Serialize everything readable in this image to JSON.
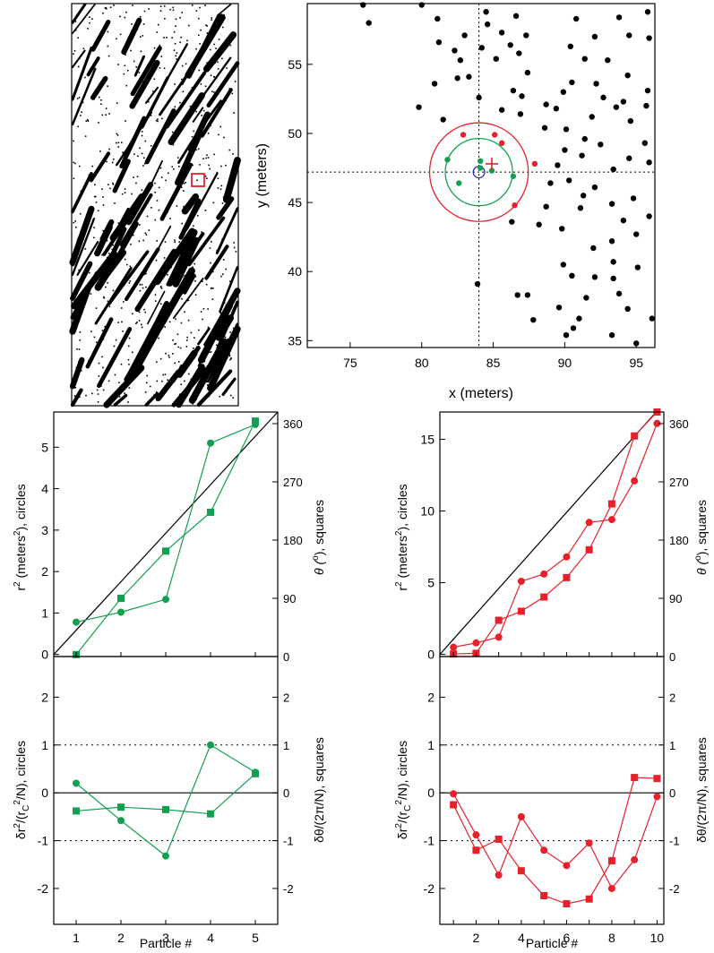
{
  "colors": {
    "green": "#12a050",
    "red": "#e8202a",
    "blue": "#2a2aa8",
    "black": "#000000"
  },
  "chart_data": [
    {
      "id": "map",
      "type": "image",
      "description": "binary particle field (black streaks on white)",
      "marker": "red square"
    },
    {
      "id": "zoom",
      "type": "scatter",
      "xlabel": "x (meters)",
      "ylabel": "y (meters)",
      "xlim": [
        72,
        96.3
      ],
      "ylim": [
        34.5,
        59.4
      ],
      "xticks": [
        75,
        80,
        85,
        90,
        95
      ],
      "yticks": [
        35,
        40,
        45,
        50,
        55
      ],
      "center": [
        84.0,
        47.2
      ],
      "circles": [
        {
          "color": "red",
          "r": 3.45
        },
        {
          "color": "green",
          "r": 2.35
        },
        {
          "color": "blue",
          "r": 0.4
        }
      ],
      "cross": [
        84.9,
        47.8
      ],
      "black_points": [
        [
          75.9,
          59.3
        ],
        [
          76.3,
          58.0
        ],
        [
          80.0,
          59.3
        ],
        [
          81.1,
          58.3
        ],
        [
          81.2,
          56.6
        ],
        [
          82.3,
          56.0
        ],
        [
          82.7,
          55.3
        ],
        [
          82.5,
          54.0
        ],
        [
          83.3,
          54.1
        ],
        [
          84.2,
          56.2
        ],
        [
          83.0,
          57.1
        ],
        [
          80.9,
          53.6
        ],
        [
          79.8,
          51.9
        ],
        [
          81.5,
          51.0
        ],
        [
          84.0,
          52.6
        ],
        [
          84.6,
          57.9
        ],
        [
          85.6,
          57.3
        ],
        [
          86.2,
          56.4
        ],
        [
          86.8,
          55.8
        ],
        [
          85.2,
          55.4
        ],
        [
          87.4,
          54.4
        ],
        [
          88.7,
          52.1
        ],
        [
          86.9,
          51.4
        ],
        [
          85.6,
          51.7
        ],
        [
          86.4,
          53.1
        ],
        [
          87.0,
          52.7
        ],
        [
          88.6,
          50.4
        ],
        [
          89.4,
          51.8
        ],
        [
          89.9,
          53.0
        ],
        [
          90.4,
          56.3
        ],
        [
          91.4,
          55.4
        ],
        [
          90.8,
          58.3
        ],
        [
          91.9,
          51.2
        ],
        [
          92.7,
          52.6
        ],
        [
          93.0,
          55.3
        ],
        [
          93.8,
          58.4
        ],
        [
          94.5,
          57.1
        ],
        [
          95.9,
          56.9
        ],
        [
          94.4,
          54.2
        ],
        [
          95.8,
          53.1
        ],
        [
          93.6,
          51.9
        ],
        [
          91.4,
          49.6
        ],
        [
          90.0,
          48.8
        ],
        [
          91.2,
          48.4
        ],
        [
          92.5,
          49.2
        ],
        [
          94.5,
          48.2
        ],
        [
          95.6,
          49.3
        ],
        [
          93.4,
          47.4
        ],
        [
          92.1,
          46.1
        ],
        [
          90.3,
          46.6
        ],
        [
          89.0,
          46.4
        ],
        [
          91.3,
          45.5
        ],
        [
          91.1,
          44.6
        ],
        [
          93.3,
          44.9
        ],
        [
          94.8,
          45.3
        ],
        [
          95.9,
          44.0
        ],
        [
          94.1,
          43.7
        ],
        [
          95.0,
          42.7
        ],
        [
          93.3,
          42.2
        ],
        [
          92.0,
          41.7
        ],
        [
          89.8,
          43.1
        ],
        [
          88.2,
          43.4
        ],
        [
          86.3,
          43.6
        ],
        [
          89.9,
          40.5
        ],
        [
          90.5,
          39.7
        ],
        [
          92.1,
          39.6
        ],
        [
          93.4,
          39.5
        ],
        [
          95.1,
          40.3
        ],
        [
          93.8,
          38.4
        ],
        [
          91.5,
          38.1
        ],
        [
          89.6,
          37.4
        ],
        [
          90.1,
          35.4
        ],
        [
          93.3,
          35.4
        ],
        [
          94.4,
          37.3
        ],
        [
          96.1,
          36.6
        ],
        [
          95.0,
          34.8
        ],
        [
          87.4,
          38.3
        ],
        [
          86.7,
          38.3
        ],
        [
          83.9,
          39.1
        ],
        [
          91.0,
          36.6
        ],
        [
          87.8,
          36.5
        ],
        [
          90.6,
          35.9
        ],
        [
          93.4,
          40.7
        ],
        [
          88.7,
          44.7
        ],
        [
          95.9,
          47.9
        ],
        [
          90.1,
          50.3
        ],
        [
          92.2,
          53.6
        ],
        [
          94.1,
          52.3
        ],
        [
          84.5,
          58.8
        ],
        [
          86.6,
          58.5
        ],
        [
          87.3,
          57.1
        ],
        [
          90.5,
          53.7
        ],
        [
          89.5,
          47.7
        ],
        [
          94.6,
          50.9
        ],
        [
          92.1,
          57.0
        ],
        [
          95.7,
          52.0
        ],
        [
          95.8,
          58.8
        ]
      ],
      "green_points": [
        [
          81.8,
          48.1
        ],
        [
          84.1,
          48.0
        ],
        [
          82.6,
          46.4
        ],
        [
          84.1,
          47.5
        ],
        [
          84.9,
          47.3
        ],
        [
          86.4,
          46.9
        ]
      ],
      "red_points": [
        [
          82.9,
          49.9
        ],
        [
          85.1,
          49.9
        ],
        [
          85.6,
          49.3
        ],
        [
          86.5,
          44.8
        ],
        [
          87.9,
          47.8
        ]
      ]
    },
    {
      "id": "growth_green",
      "type": "line",
      "x": [
        1,
        2,
        3,
        4,
        5
      ],
      "r2": [
        0.78,
        1.02,
        1.33,
        5.1,
        5.55
      ],
      "theta": [
        3,
        90,
        163,
        223,
        364
      ],
      "xlim": [
        0.5,
        5.5
      ],
      "ylim_left": [
        -0.05,
        5.85
      ],
      "yticks_left": [
        0,
        1,
        2,
        3,
        4,
        5
      ],
      "ylim_right": [
        0,
        378
      ],
      "yticks_right": [
        0,
        90,
        180,
        270,
        360
      ],
      "ylabel_left_pre": "r",
      "ylabel_left_sup": "2",
      "ylabel_left_mid": " (meters",
      "ylabel_left_sup2": "2",
      "ylabel_left_post": "), circles",
      "ylabel_right_pre": "θ (",
      "ylabel_right_sup": "o",
      "ylabel_right_post": "), squares",
      "diagonal": [
        [
          0.5,
          0
        ],
        [
          5.5,
          5.85
        ]
      ]
    },
    {
      "id": "growth_red",
      "type": "line",
      "x": [
        1,
        2,
        3,
        4,
        5,
        6,
        7,
        8,
        9,
        10
      ],
      "r2": [
        0.5,
        0.8,
        1.2,
        5.1,
        5.6,
        6.8,
        9.2,
        9.4,
        12.1,
        16.1
      ],
      "theta": [
        4,
        5,
        56,
        70,
        92,
        122,
        165,
        236,
        341,
        380
      ],
      "xlim": [
        0.4,
        10.3
      ],
      "ylim_left": [
        -0.15,
        16.9
      ],
      "yticks_left": [
        0,
        5,
        10,
        15
      ],
      "ylim_right": [
        0,
        378
      ],
      "yticks_right": [
        0,
        90,
        180,
        270,
        360
      ],
      "ylabel_left_pre": "r",
      "ylabel_left_sup": "2",
      "ylabel_left_mid": " (meters",
      "ylabel_left_sup2": "2",
      "ylabel_left_post": "), circles",
      "ylabel_right_pre": "θ (",
      "ylabel_right_sup": "o",
      "ylabel_right_post": "), squares",
      "diagonal": [
        [
          0.4,
          0
        ],
        [
          10.3,
          17.5
        ]
      ]
    },
    {
      "id": "residual_green",
      "type": "line",
      "xlabel": "Particle #",
      "x": [
        1,
        2,
        3,
        4,
        5
      ],
      "dr2": [
        0.2,
        -0.58,
        -1.32,
        1.0,
        0.43
      ],
      "dtheta": [
        -0.38,
        -0.3,
        -0.35,
        -0.44,
        0.4
      ],
      "xlim": [
        0.5,
        5.5
      ],
      "ylim": [
        -2.75,
        2.85
      ],
      "yticks": [
        -2,
        -1,
        0,
        1,
        2
      ],
      "hlines_dotted": [
        1,
        -1
      ],
      "hline_solid": 0,
      "ylabel_left_pre": "δr",
      "ylabel_left_sup": "2",
      "ylabel_left_mid": "/(r",
      "ylabel_left_sub": "C",
      "ylabel_left_sup2": "2",
      "ylabel_left_post": "/N), circles",
      "ylabel_right": "δθ/(2π/N), squares"
    },
    {
      "id": "residual_red",
      "type": "line",
      "xlabel": "Particle #",
      "x": [
        1,
        2,
        3,
        4,
        5,
        6,
        7,
        8,
        9,
        10
      ],
      "dr2": [
        -0.02,
        -0.88,
        -1.72,
        -0.5,
        -1.2,
        -1.52,
        -1.05,
        -2.0,
        -1.4,
        -0.08
      ],
      "dtheta": [
        -0.25,
        -1.2,
        -0.97,
        -1.63,
        -2.15,
        -2.32,
        -2.22,
        -1.42,
        0.32,
        0.3
      ],
      "xlim": [
        0.4,
        10.3
      ],
      "xticks": [
        2,
        4,
        6,
        8,
        10
      ],
      "ylim": [
        -2.75,
        2.85
      ],
      "yticks": [
        -2,
        -1,
        0,
        1,
        2
      ],
      "hlines_dotted": [
        1,
        -1
      ],
      "hline_solid": 0,
      "ylabel_left_pre": "δr",
      "ylabel_left_sup": "2",
      "ylabel_left_mid": "/(r",
      "ylabel_left_sub": "C",
      "ylabel_left_sup2": "2",
      "ylabel_left_post": "/N), circles",
      "ylabel_right": "δθ/(2π/N), squares"
    }
  ]
}
